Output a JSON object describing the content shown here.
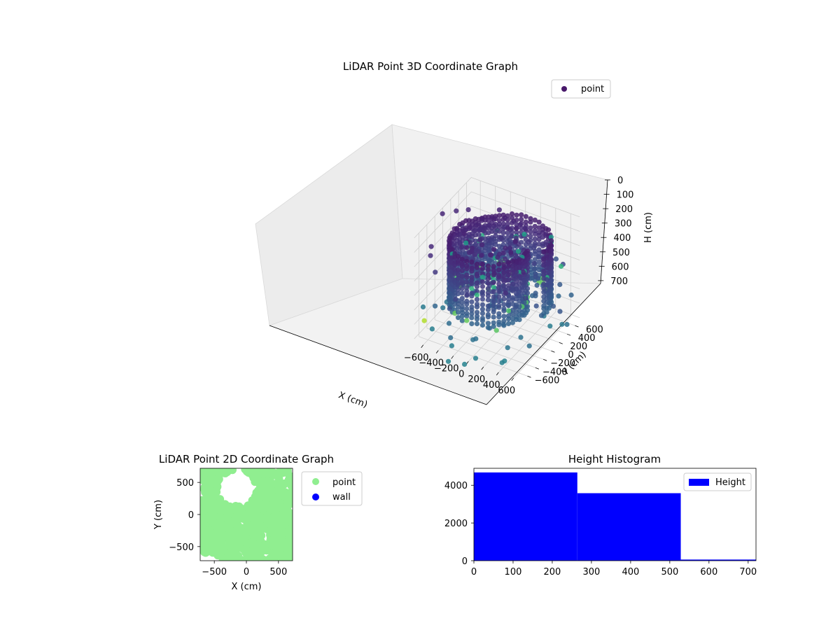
{
  "chart_data": [
    {
      "type": "scatter",
      "projection": "3d",
      "title": "LiDAR Point 3D Coordinate Graph",
      "xlabel": "X (cm)",
      "ylabel": "Y (cm)",
      "zlabel": "H (cm)",
      "xlim": [
        -720,
        720
      ],
      "ylim": [
        -720,
        720
      ],
      "zlim": [
        720,
        0
      ],
      "x_ticks": [
        -600,
        -400,
        -200,
        0,
        200,
        400,
        600
      ],
      "y_ticks": [
        -600,
        -400,
        -200,
        0,
        200,
        400,
        600
      ],
      "z_ticks": [
        0,
        100,
        200,
        300,
        400,
        500,
        600,
        700
      ],
      "grid": true,
      "colormap": "viridis (by height)",
      "legend": {
        "position": "upper right",
        "entries": [
          "point"
        ]
      },
      "series": [
        {
          "name": "point",
          "color": "#440154",
          "shape": "dense cylindrical shell of points around the origin, radius ≈ 500–650 cm, heights ≈ 0–500 cm, plus sparse outliers",
          "approx_points": [
            {
              "x": -600,
              "y": 500,
              "h": 400
            },
            {
              "x": -500,
              "y": 600,
              "h": 350
            },
            {
              "x": -300,
              "y": 650,
              "h": 300
            },
            {
              "x": 0,
              "y": 650,
              "h": 250
            },
            {
              "x": 300,
              "y": 600,
              "h": 200
            },
            {
              "x": 550,
              "y": 400,
              "h": 150
            },
            {
              "x": 650,
              "y": 100,
              "h": 100
            },
            {
              "x": 600,
              "y": -200,
              "h": 150
            },
            {
              "x": 400,
              "y": -500,
              "h": 200
            },
            {
              "x": 100,
              "y": -650,
              "h": 250
            },
            {
              "x": -300,
              "y": -600,
              "h": 300
            },
            {
              "x": -600,
              "y": -300,
              "h": 350
            },
            {
              "x": -650,
              "y": 0,
              "h": 400
            }
          ]
        }
      ]
    },
    {
      "type": "scatter",
      "title": "LiDAR Point 2D Coordinate Graph",
      "xlabel": "X (cm)",
      "ylabel": "Y (cm)",
      "xlim": [
        -720,
        720
      ],
      "ylim": [
        -720,
        720
      ],
      "x_ticks": [
        -500,
        0,
        500
      ],
      "y_ticks": [
        -500,
        0,
        500
      ],
      "legend": {
        "position": "outside right",
        "entries": [
          "point",
          "wall"
        ]
      },
      "series": [
        {
          "name": "point",
          "color": "#90ee90",
          "shape": "large filled region covering most of the plot; hollow gap in upper-left"
        },
        {
          "name": "wall",
          "color": "#0000ff",
          "values": []
        }
      ]
    },
    {
      "type": "bar",
      "subtype": "histogram",
      "title": "Height Histogram",
      "xlim": [
        0,
        720
      ],
      "ylim": [
        0,
        4900
      ],
      "x_ticks": [
        0,
        100,
        200,
        300,
        400,
        500,
        600,
        700
      ],
      "y_ticks": [
        0,
        2000,
        4000
      ],
      "legend": {
        "position": "upper right",
        "entries": [
          "Height"
        ]
      },
      "series": [
        {
          "name": "Height",
          "color": "#0000ff",
          "bins": [
            [
              0,
              264
            ],
            [
              264,
              528
            ],
            [
              528,
              720
            ]
          ],
          "values": [
            4680,
            3580,
            60
          ]
        }
      ]
    }
  ]
}
